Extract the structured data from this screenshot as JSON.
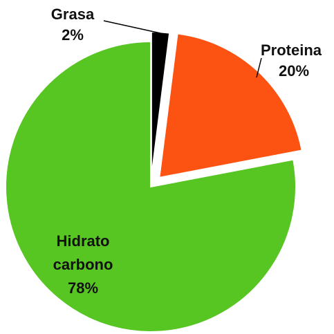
{
  "chart_data": {
    "type": "pie",
    "categories": [
      "Grasa",
      "Proteina",
      "Hidrato carbono"
    ],
    "values": [
      2,
      20,
      78
    ],
    "value_labels": [
      "2%",
      "20%",
      "78%"
    ],
    "colors": [
      "#000000",
      "#fd5312",
      "#57c623"
    ]
  }
}
